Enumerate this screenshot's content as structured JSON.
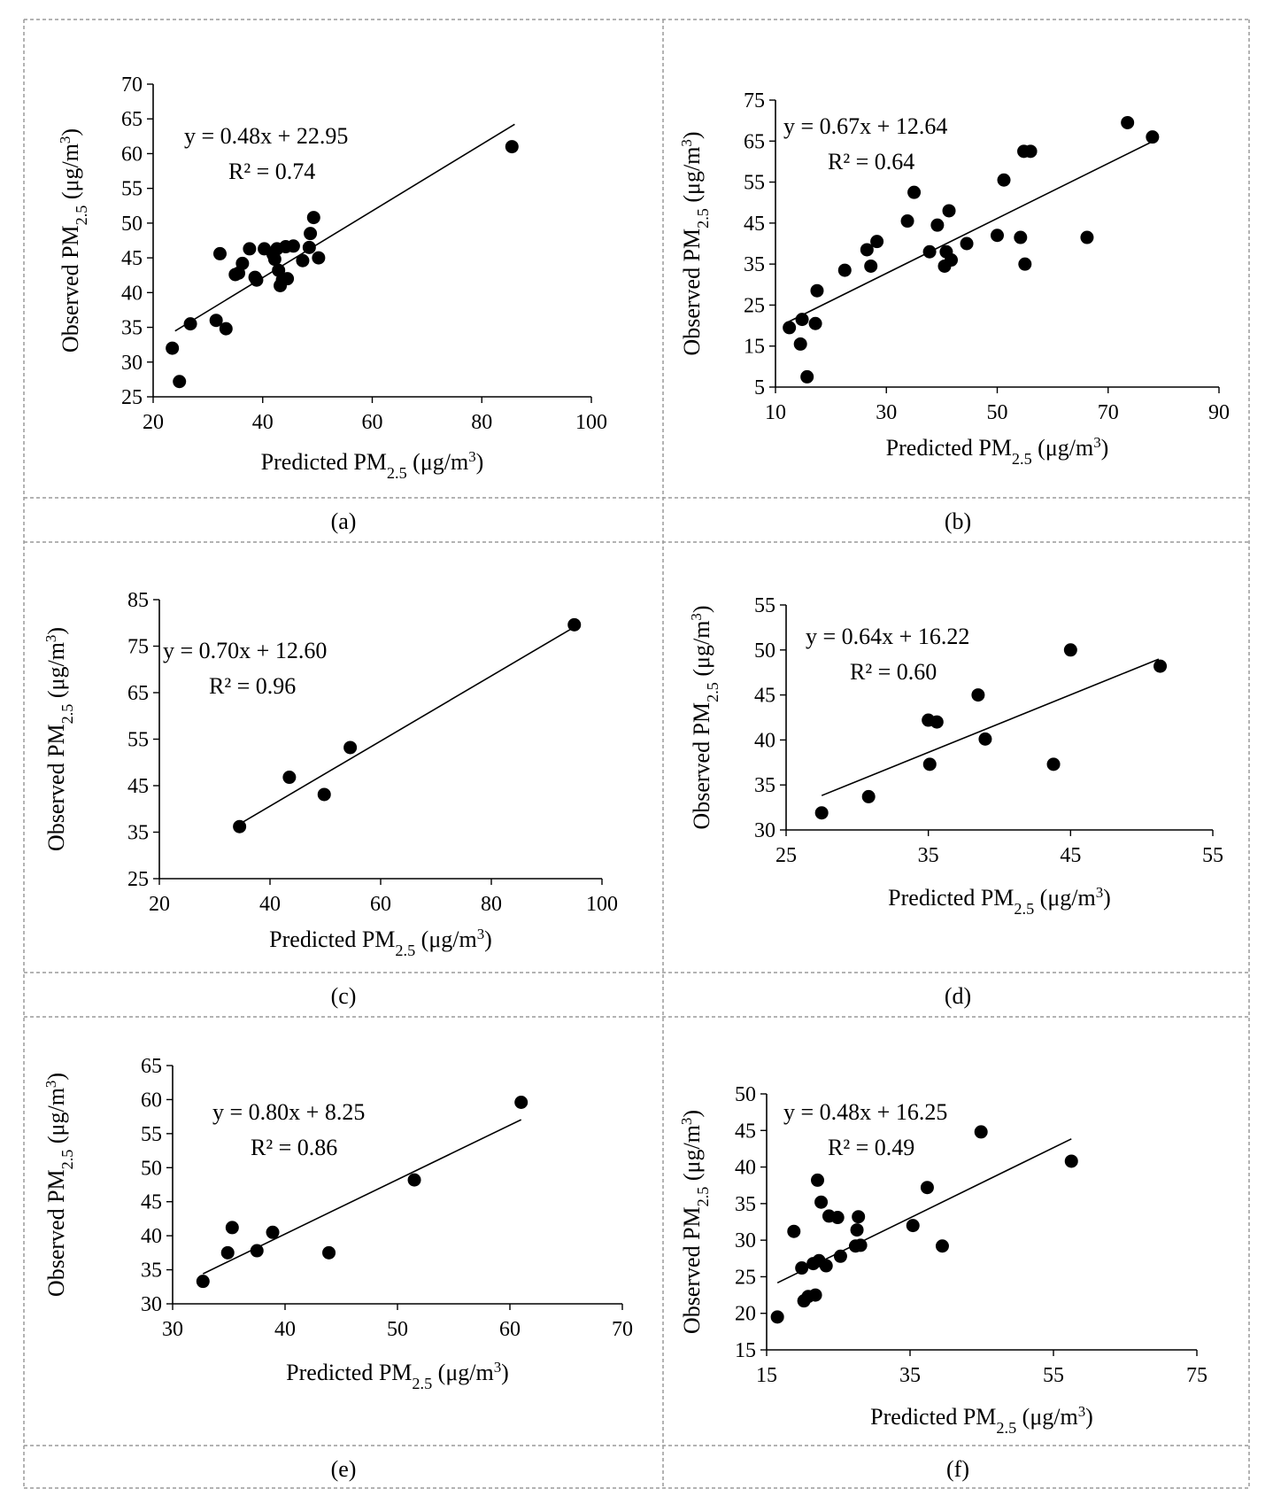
{
  "figure": {
    "panel_labels": [
      "(a)",
      "(b)",
      "(c)",
      "(d)",
      "(e)",
      "(f)"
    ]
  },
  "colors": {
    "marker": "#000000",
    "axis": "#000000",
    "grid_border": "#9a9a9a"
  },
  "chart_data": [
    {
      "type": "scatter",
      "panel": "(a)",
      "xlabel": "Predicted PM2.5 (μg/m³)",
      "ylabel": "Observed PM2.5 (μg/m³)",
      "xlim": [
        20,
        100
      ],
      "ylim": [
        25,
        70
      ],
      "xticks": [
        20,
        40,
        60,
        80,
        100
      ],
      "yticks": [
        25,
        30,
        35,
        40,
        45,
        50,
        55,
        60,
        65,
        70
      ],
      "equation": "y = 0.48x + 22.95",
      "r2": "R² = 0.74",
      "trendline": {
        "slope": 0.48,
        "intercept": 22.95,
        "x_range": [
          24,
          86
        ]
      },
      "points": [
        [
          23.5,
          32
        ],
        [
          24.8,
          27.2
        ],
        [
          26.8,
          35.5
        ],
        [
          31.5,
          36
        ],
        [
          32.2,
          45.6
        ],
        [
          33.3,
          34.8
        ],
        [
          35,
          42.6
        ],
        [
          35.6,
          42.8
        ],
        [
          36.3,
          44.2
        ],
        [
          37.6,
          46.3
        ],
        [
          38.6,
          42.2
        ],
        [
          38.9,
          41.8
        ],
        [
          40.3,
          46.3
        ],
        [
          41.9,
          45.5
        ],
        [
          42.2,
          44.8
        ],
        [
          42.6,
          46.3
        ],
        [
          42.9,
          43.2
        ],
        [
          43.2,
          41
        ],
        [
          43.6,
          41.8
        ],
        [
          44.2,
          46.6
        ],
        [
          44.5,
          42
        ],
        [
          45.6,
          46.7
        ],
        [
          47.3,
          44.6
        ],
        [
          48.5,
          46.5
        ],
        [
          48.7,
          48.5
        ],
        [
          49.3,
          50.8
        ],
        [
          50.2,
          45
        ],
        [
          85.5,
          61
        ]
      ]
    },
    {
      "type": "scatter",
      "panel": "(b)",
      "xlabel": "Predicted PM2.5 (μg/m³)",
      "ylabel": "Observed PM2.5 (μg/m³)",
      "xlim": [
        10,
        90
      ],
      "ylim": [
        5,
        75
      ],
      "xticks": [
        10,
        30,
        50,
        70,
        90
      ],
      "yticks": [
        5,
        15,
        25,
        35,
        45,
        55,
        65,
        75
      ],
      "equation": "y = 0.67x + 12.64",
      "r2": "R² = 0.64",
      "trendline": {
        "slope": 0.67,
        "intercept": 12.64,
        "x_range": [
          12,
          78
        ]
      },
      "points": [
        [
          12.5,
          19.5
        ],
        [
          14.5,
          15.5
        ],
        [
          14.8,
          21.5
        ],
        [
          15.7,
          7.5
        ],
        [
          17.2,
          20.5
        ],
        [
          17.5,
          28.5
        ],
        [
          22.5,
          33.5
        ],
        [
          26.5,
          38.5
        ],
        [
          27.2,
          34.5
        ],
        [
          28.3,
          40.5
        ],
        [
          33.8,
          45.5
        ],
        [
          35,
          52.5
        ],
        [
          37.8,
          38
        ],
        [
          39.2,
          44.5
        ],
        [
          40.5,
          34.5
        ],
        [
          40.8,
          38
        ],
        [
          41.3,
          48
        ],
        [
          41.7,
          36
        ],
        [
          44.5,
          40
        ],
        [
          50,
          42
        ],
        [
          51.2,
          55.5
        ],
        [
          54.2,
          41.5
        ],
        [
          54.8,
          62.5
        ],
        [
          55,
          35
        ],
        [
          56,
          62.5
        ],
        [
          66.2,
          41.5
        ],
        [
          73.5,
          69.5
        ],
        [
          78,
          66
        ]
      ]
    },
    {
      "type": "scatter",
      "panel": "(c)",
      "xlabel": "Predicted PM2.5 (μg/m³)",
      "ylabel": "Observed PM2.5 (μg/m³)",
      "xlim": [
        20,
        100
      ],
      "ylim": [
        25,
        85
      ],
      "xticks": [
        20,
        40,
        60,
        80,
        100
      ],
      "yticks": [
        25,
        35,
        45,
        55,
        65,
        75,
        85
      ],
      "equation": "y = 0.70x + 12.60",
      "r2": "R² = 0.96",
      "trendline": {
        "slope": 0.7,
        "intercept": 12.6,
        "x_range": [
          34.5,
          95
        ]
      },
      "points": [
        [
          34.5,
          36.2
        ],
        [
          43.5,
          46.8
        ],
        [
          49.8,
          43.1
        ],
        [
          54.5,
          53.2
        ],
        [
          95,
          79.6
        ]
      ]
    },
    {
      "type": "scatter",
      "panel": "(d)",
      "xlabel": "Predicted PM2.5 (μg/m³)",
      "ylabel": "Observed PM2.5 (μg/m³)",
      "xlim": [
        25,
        55
      ],
      "ylim": [
        30,
        55
      ],
      "xticks": [
        25,
        35,
        45,
        55
      ],
      "yticks": [
        30,
        35,
        40,
        45,
        50,
        55
      ],
      "equation": "y = 0.64x + 16.22",
      "r2": "R² = 0.60",
      "trendline": {
        "slope": 0.64,
        "intercept": 16.22,
        "x_range": [
          27.5,
          51.2
        ]
      },
      "points": [
        [
          27.5,
          31.9
        ],
        [
          30.8,
          33.7
        ],
        [
          35,
          42.2
        ],
        [
          35.1,
          37.3
        ],
        [
          35.6,
          42
        ],
        [
          38.5,
          45
        ],
        [
          39,
          40.1
        ],
        [
          43.8,
          37.3
        ],
        [
          45,
          50
        ],
        [
          51.3,
          48.2
        ]
      ]
    },
    {
      "type": "scatter",
      "panel": "(e)",
      "xlabel": "Predicted PM2.5 (μg/m³)",
      "ylabel": "Observed PM2.5 (μg/m³)",
      "xlim": [
        30,
        70
      ],
      "ylim": [
        30,
        65
      ],
      "xticks": [
        30,
        40,
        50,
        60,
        70
      ],
      "yticks": [
        30,
        35,
        40,
        45,
        50,
        55,
        60,
        65
      ],
      "equation": "y = 0.80x + 8.25",
      "r2": "R² = 0.86",
      "trendline": {
        "slope": 0.8,
        "intercept": 8.25,
        "x_range": [
          32.7,
          61
        ]
      },
      "points": [
        [
          32.7,
          33.3
        ],
        [
          34.9,
          37.5
        ],
        [
          35.3,
          41.2
        ],
        [
          37.5,
          37.8
        ],
        [
          38.9,
          40.5
        ],
        [
          43.9,
          37.5
        ],
        [
          51.5,
          48.2
        ],
        [
          61,
          59.6
        ]
      ]
    },
    {
      "type": "scatter",
      "panel": "(f)",
      "xlabel": "Predicted PM2.5 (μg/m³)",
      "ylabel": "Observed PM2.5 (μg/m³)",
      "xlim": [
        15,
        75
      ],
      "ylim": [
        15,
        50
      ],
      "xticks": [
        15,
        35,
        55,
        75
      ],
      "yticks": [
        15,
        20,
        25,
        30,
        35,
        40,
        45,
        50
      ],
      "equation": "y = 0.48x + 16.25",
      "r2": "R² = 0.49",
      "trendline": {
        "slope": 0.48,
        "intercept": 16.25,
        "x_range": [
          16.5,
          57.5
        ]
      },
      "points": [
        [
          16.5,
          19.5
        ],
        [
          18.8,
          31.2
        ],
        [
          19.9,
          26.2
        ],
        [
          20.2,
          21.7
        ],
        [
          20.8,
          22.3
        ],
        [
          21.5,
          26.8
        ],
        [
          21.8,
          22.5
        ],
        [
          22.1,
          38.2
        ],
        [
          22.3,
          27.2
        ],
        [
          22.6,
          35.2
        ],
        [
          23.3,
          26.5
        ],
        [
          23.7,
          33.3
        ],
        [
          24.9,
          33.1
        ],
        [
          25.3,
          27.8
        ],
        [
          27.4,
          29.2
        ],
        [
          27.6,
          31.4
        ],
        [
          27.8,
          33.2
        ],
        [
          28.1,
          29.3
        ],
        [
          35.4,
          32
        ],
        [
          37.4,
          37.2
        ],
        [
          39.5,
          29.2
        ],
        [
          44.9,
          44.8
        ],
        [
          57.5,
          40.8
        ]
      ]
    }
  ]
}
